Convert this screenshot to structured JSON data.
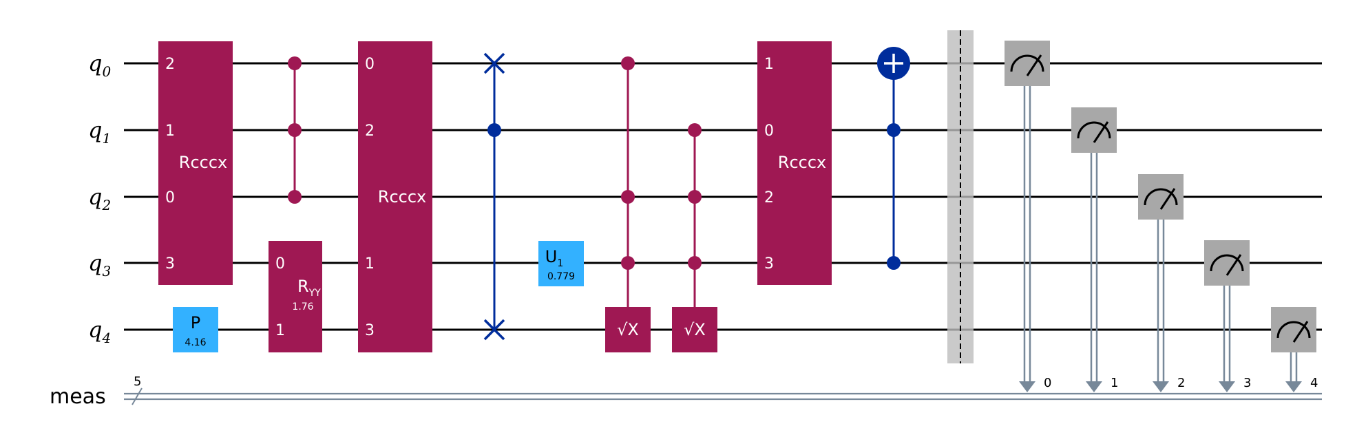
{
  "colors": {
    "multi_gate": "#9F1853",
    "single_gate": "#33B1FF",
    "cx_swap": "#002D9C",
    "measure": "#A8A8A8",
    "barrier": "#BDBDBD",
    "classical": "#778899"
  },
  "qubits": [
    {
      "base": "q",
      "sub": "0"
    },
    {
      "base": "q",
      "sub": "1"
    },
    {
      "base": "q",
      "sub": "2"
    },
    {
      "base": "q",
      "sub": "3"
    },
    {
      "base": "q",
      "sub": "4"
    }
  ],
  "classical_register": {
    "name": "meas",
    "size": "5",
    "bit_labels": [
      "0",
      "1",
      "2",
      "3",
      "4"
    ]
  },
  "gates": {
    "rcccx_1": {
      "label": "Rcccx",
      "indices": [
        "2",
        "1",
        "0",
        "3"
      ]
    },
    "p": {
      "label": "P",
      "param": "4.16"
    },
    "ryy": {
      "label_base": "R",
      "label_sub": "YY",
      "param": "1.76",
      "indices": [
        "0",
        "1"
      ]
    },
    "rcccx_2": {
      "label": "Rcccx",
      "indices": [
        "0",
        "2",
        "1",
        "3"
      ]
    },
    "u1": {
      "label_base": "U",
      "label_sub": "1",
      "param": "0.779"
    },
    "csx_1": {
      "label": "√X"
    },
    "csx_2": {
      "label": "√X"
    },
    "rcccx_3": {
      "label": "Rcccx",
      "indices": [
        "1",
        "0",
        "2",
        "3"
      ]
    },
    "measure_icon": "meter-icon"
  }
}
